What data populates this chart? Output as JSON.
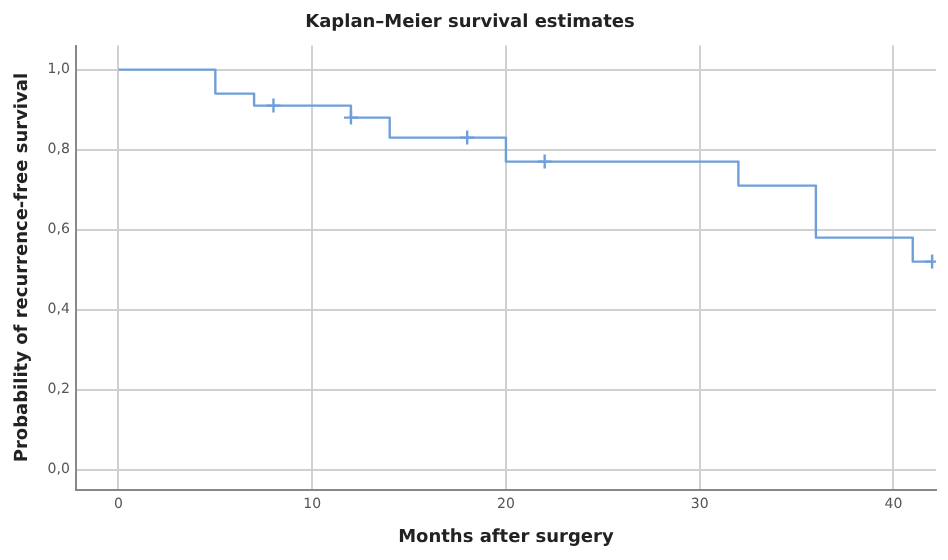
{
  "chart_data": {
    "type": "step",
    "title": "Kaplan–Meier survival estimates",
    "xlabel": "Months after surgery",
    "ylabel": "Probability of recurrence-free survival",
    "series": [
      {
        "color": "#6f9fd8",
        "marker": "none",
        "x": [
          0,
          5,
          7,
          12,
          14,
          20,
          32,
          36,
          41,
          42
        ],
        "values": [
          1,
          0.94,
          0.91,
          0.88,
          0.83,
          0.77,
          0.71,
          0.58,
          0.52,
          0.52
        ]
      },
      {
        "type": "scatter",
        "color": "#6f9fd8",
        "marker": "cross",
        "x": [
          8,
          12,
          18,
          22,
          42
        ],
        "values": [
          0.91,
          0.88,
          0.83,
          0.77,
          0.52
        ]
      }
    ],
    "xlim": [
      -2.2,
      42.2
    ],
    "xticks": [
      0,
      10,
      20,
      30,
      40
    ],
    "ylim": [
      -0.05,
      1.06
    ],
    "yticks": [
      {
        "value": 0,
        "label": "0,0"
      },
      {
        "value": 0.2,
        "label": "0,2"
      },
      {
        "value": 0.4,
        "label": "0,4"
      },
      {
        "value": 0.6,
        "label": "0,6"
      },
      {
        "value": 0.8,
        "label": "0,8"
      },
      {
        "value": 1,
        "label": "1,0"
      }
    ],
    "grid": true,
    "legend": false
  }
}
